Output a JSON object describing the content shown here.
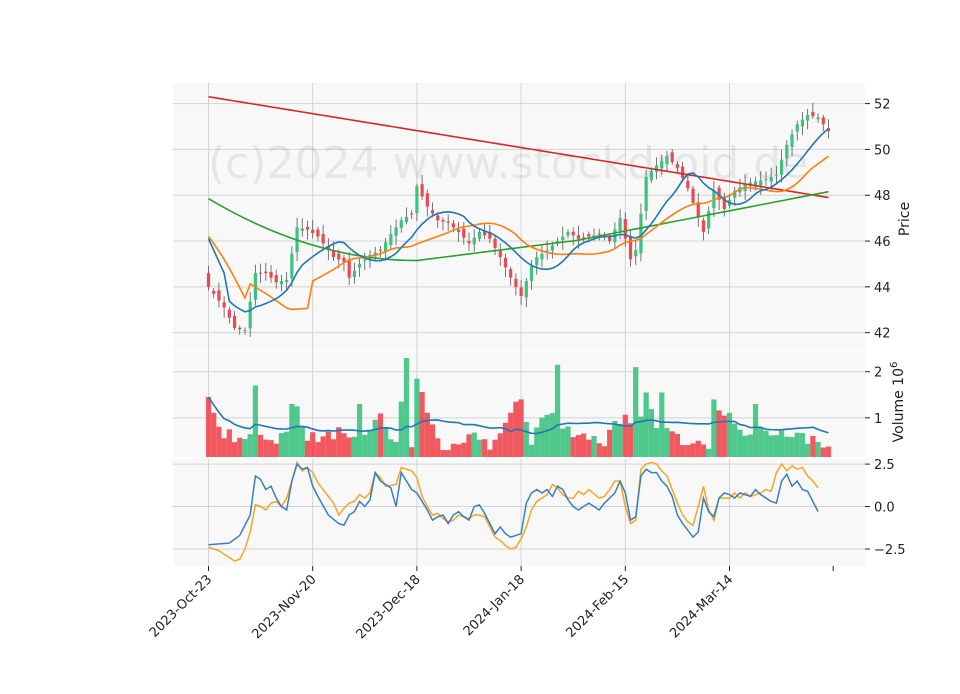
{
  "chart_data": {
    "type": "candlestick",
    "watermark": "(c)2024 www.stockdroid.de",
    "x_tick_labels": [
      "2023-Oct-23",
      "2023-Nov-20",
      "2023-Dec-18",
      "2024-Jan-18",
      "2024-Feb-15",
      "2024-Mar-14"
    ],
    "x_tick_days": [
      0,
      20,
      40,
      60,
      80,
      100
    ],
    "n_days": 120,
    "colors": {
      "up": "#3cc27f",
      "down": "#f0474f",
      "ma_fast": "#1f77b4",
      "ma_mid": "#ff7f0e",
      "ma_slow": "#2ca02c",
      "ma_long": "#d62728",
      "vol_ma": "#1f77b4",
      "macd": "#3a7ebf",
      "signal": "#f5a623",
      "panel_bg": "#f8f8f8",
      "grid": "#d3d3d3"
    },
    "price_panel": {
      "ylabel": "Price",
      "ylim": [
        41.2,
        52.9
      ],
      "yticks": [
        42,
        44,
        46,
        48,
        50,
        52
      ],
      "close_keypoints": [
        [
          0,
          44.0
        ],
        [
          3,
          43.1
        ],
        [
          5,
          42.2
        ],
        [
          7,
          42.1
        ],
        [
          9,
          44.6
        ],
        [
          11,
          44.6
        ],
        [
          13,
          44.2
        ],
        [
          15,
          44.3
        ],
        [
          17,
          46.6
        ],
        [
          19,
          46.5
        ],
        [
          21,
          46.2
        ],
        [
          24,
          45.3
        ],
        [
          26,
          45.1
        ],
        [
          27,
          44.4
        ],
        [
          29,
          45.0
        ],
        [
          31,
          45.4
        ],
        [
          33,
          45.6
        ],
        [
          35,
          46.3
        ],
        [
          37,
          46.9
        ],
        [
          39,
          47.2
        ],
        [
          40,
          48.4
        ],
        [
          42,
          47.5
        ],
        [
          44,
          46.9
        ],
        [
          46,
          46.8
        ],
        [
          48,
          46.4
        ],
        [
          50,
          45.9
        ],
        [
          52,
          46.4
        ],
        [
          54,
          46.1
        ],
        [
          56,
          45.3
        ],
        [
          58,
          44.4
        ],
        [
          60,
          43.6
        ],
        [
          62,
          44.9
        ],
        [
          63,
          45.3
        ],
        [
          65,
          45.6
        ],
        [
          67,
          46.0
        ],
        [
          69,
          46.4
        ],
        [
          71,
          46.1
        ],
        [
          73,
          46.2
        ],
        [
          75,
          46.3
        ],
        [
          77,
          46.0
        ],
        [
          79,
          47.0
        ],
        [
          81,
          45.2
        ],
        [
          82,
          45.6
        ],
        [
          84,
          48.8
        ],
        [
          86,
          49.3
        ],
        [
          88,
          49.7
        ],
        [
          90,
          49.2
        ],
        [
          92,
          48.3
        ],
        [
          95,
          46.4
        ],
        [
          97,
          48.2
        ],
        [
          99,
          47.4
        ],
        [
          101,
          48.2
        ],
        [
          103,
          48.5
        ],
        [
          105,
          48.6
        ],
        [
          107,
          48.7
        ],
        [
          109,
          48.9
        ],
        [
          111,
          50.2
        ],
        [
          113,
          51.1
        ],
        [
          115,
          51.5
        ],
        [
          117,
          51.4
        ],
        [
          119,
          50.8
        ]
      ],
      "volume_keypoints": [
        [
          0,
          1.45
        ],
        [
          2,
          0.7
        ],
        [
          4,
          0.65
        ],
        [
          6,
          0.45
        ],
        [
          8,
          0.6
        ],
        [
          10,
          0.7
        ],
        [
          12,
          0.5
        ],
        [
          15,
          0.65
        ],
        [
          16,
          0.4
        ],
        [
          17,
          1.25
        ],
        [
          19,
          0.6
        ],
        [
          22,
          0.55
        ],
        [
          25,
          0.7
        ],
        [
          27,
          0.45
        ],
        [
          29,
          0.5
        ],
        [
          31,
          0.8
        ],
        [
          33,
          1.0
        ],
        [
          35,
          0.6
        ],
        [
          36,
          0.5
        ],
        [
          37,
          1.3
        ],
        [
          39,
          0.4
        ],
        [
          41,
          1.5
        ],
        [
          43,
          0.8
        ],
        [
          45,
          0.35
        ],
        [
          48,
          0.3
        ],
        [
          50,
          0.55
        ],
        [
          52,
          0.6
        ],
        [
          54,
          0.4
        ],
        [
          56,
          0.65
        ],
        [
          58,
          1.0
        ],
        [
          60,
          1.35
        ],
        [
          62,
          0.5
        ],
        [
          64,
          1.0
        ],
        [
          66,
          1.1
        ],
        [
          68,
          0.8
        ],
        [
          70,
          0.7
        ],
        [
          72,
          0.65
        ],
        [
          74,
          0.55
        ],
        [
          76,
          0.45
        ],
        [
          78,
          0.95
        ],
        [
          80,
          1.0
        ],
        [
          82,
          0.6
        ],
        [
          84,
          1.25
        ],
        [
          86,
          0.9
        ],
        [
          88,
          0.75
        ],
        [
          90,
          0.55
        ],
        [
          92,
          0.5
        ],
        [
          94,
          0.6
        ],
        [
          96,
          0.45
        ],
        [
          98,
          1.05
        ],
        [
          100,
          1.2
        ],
        [
          102,
          0.7
        ],
        [
          104,
          0.65
        ],
        [
          106,
          0.8
        ],
        [
          108,
          0.55
        ],
        [
          110,
          0.75
        ],
        [
          112,
          0.65
        ],
        [
          114,
          0.55
        ],
        [
          116,
          0.5
        ],
        [
          118,
          0.45
        ],
        [
          119,
          0.45
        ]
      ],
      "volume_spikes": [
        [
          0,
          1.45
        ],
        [
          9,
          1.7
        ],
        [
          16,
          1.3
        ],
        [
          29,
          1.3
        ],
        [
          37,
          1.35
        ],
        [
          38,
          2.3
        ],
        [
          40,
          1.85
        ],
        [
          59,
          1.35
        ],
        [
          60,
          1.4
        ],
        [
          67,
          2.15
        ],
        [
          82,
          2.1
        ],
        [
          84,
          1.55
        ],
        [
          87,
          1.55
        ],
        [
          97,
          1.4
        ],
        [
          105,
          1.3
        ]
      ]
    },
    "volume_panel": {
      "ylabel": "Volume  10^6",
      "ylim": [
        0.15,
        2.45
      ],
      "yticks": [
        1,
        2
      ]
    },
    "macd_panel": {
      "ylim": [
        -3.5,
        2.8
      ],
      "yticks": [
        -2.5,
        0.0,
        2.5
      ],
      "macd_keypoints": [
        [
          0,
          -2.25
        ],
        [
          2,
          -2.2
        ],
        [
          4,
          -2.15
        ],
        [
          6,
          -1.7
        ],
        [
          8,
          -0.5
        ],
        [
          9,
          1.8
        ],
        [
          10,
          1.6
        ],
        [
          11,
          1.0
        ],
        [
          12,
          1.2
        ],
        [
          13,
          0.5
        ],
        [
          14,
          0.0
        ],
        [
          15,
          -0.2
        ],
        [
          16,
          1.5
        ],
        [
          17,
          2.5
        ],
        [
          18,
          2.2
        ],
        [
          19,
          2.3
        ],
        [
          20,
          1.2
        ],
        [
          21,
          0.6
        ],
        [
          23,
          -0.5
        ],
        [
          25,
          -1.0
        ],
        [
          26,
          -1.1
        ],
        [
          27,
          -0.5
        ],
        [
          28,
          -0.3
        ],
        [
          29,
          0.3
        ],
        [
          30,
          0.0
        ],
        [
          31,
          0.4
        ],
        [
          32,
          2.0
        ],
        [
          33,
          1.5
        ],
        [
          35,
          1.1
        ],
        [
          36,
          0.0
        ],
        [
          37,
          2.0
        ],
        [
          39,
          1.0
        ],
        [
          40,
          0.8
        ],
        [
          42,
          -0.2
        ],
        [
          43,
          -0.8
        ],
        [
          44,
          -0.6
        ],
        [
          45,
          -0.5
        ],
        [
          46,
          -1.0
        ],
        [
          47,
          -0.5
        ],
        [
          48,
          -0.3
        ],
        [
          49,
          -0.6
        ],
        [
          50,
          -0.8
        ],
        [
          51,
          0.0
        ],
        [
          52,
          0.1
        ],
        [
          53,
          -0.4
        ],
        [
          55,
          -1.6
        ],
        [
          56,
          -1.2
        ],
        [
          57,
          -1.6
        ],
        [
          58,
          -1.8
        ],
        [
          60,
          -1.6
        ],
        [
          61,
          0.2
        ],
        [
          62,
          0.8
        ],
        [
          63,
          1.0
        ],
        [
          64,
          0.8
        ],
        [
          65,
          1.0
        ],
        [
          66,
          0.6
        ],
        [
          67,
          1.2
        ],
        [
          68,
          1.0
        ],
        [
          69,
          0.4
        ],
        [
          70,
          0.0
        ],
        [
          71,
          -0.2
        ],
        [
          73,
          0.2
        ],
        [
          75,
          -0.2
        ],
        [
          76,
          0.2
        ],
        [
          78,
          0.8
        ],
        [
          79,
          1.5
        ],
        [
          80,
          0.8
        ],
        [
          81,
          -0.8
        ],
        [
          82,
          -0.6
        ],
        [
          83,
          1.8
        ],
        [
          84,
          2.2
        ],
        [
          85,
          2.0
        ],
        [
          86,
          2.0
        ],
        [
          87,
          1.5
        ],
        [
          88,
          1.2
        ],
        [
          89,
          0.6
        ],
        [
          90,
          -0.5
        ],
        [
          91,
          -1.0
        ],
        [
          92,
          -1.4
        ],
        [
          93,
          -1.8
        ],
        [
          94,
          -1.5
        ],
        [
          95,
          0.5
        ],
        [
          96,
          -0.3
        ],
        [
          97,
          -0.6
        ],
        [
          98,
          0.5
        ],
        [
          99,
          0.8
        ],
        [
          100,
          0.7
        ],
        [
          101,
          0.5
        ],
        [
          102,
          0.8
        ],
        [
          103,
          0.7
        ],
        [
          104,
          0.6
        ],
        [
          105,
          1.0
        ],
        [
          106,
          0.7
        ],
        [
          107,
          0.5
        ],
        [
          108,
          0.3
        ],
        [
          109,
          0.2
        ],
        [
          110,
          1.5
        ],
        [
          111,
          1.9
        ],
        [
          112,
          1.2
        ],
        [
          113,
          1.5
        ],
        [
          114,
          1.0
        ],
        [
          115,
          0.9
        ],
        [
          116,
          0.3
        ],
        [
          117,
          -0.3
        ]
      ],
      "signal_keypoints": [
        [
          0,
          -2.4
        ],
        [
          2,
          -2.6
        ],
        [
          4,
          -3.0
        ],
        [
          5,
          -3.2
        ],
        [
          6,
          -3.1
        ],
        [
          7,
          -2.5
        ],
        [
          8,
          -1.5
        ],
        [
          9,
          0.1
        ],
        [
          10,
          0.0
        ],
        [
          11,
          -0.2
        ],
        [
          12,
          0.2
        ],
        [
          13,
          0.3
        ],
        [
          14,
          0.0
        ],
        [
          15,
          0.5
        ],
        [
          16,
          1.5
        ],
        [
          17,
          2.6
        ],
        [
          18,
          2.1
        ],
        [
          19,
          2.3
        ],
        [
          20,
          2.0
        ],
        [
          21,
          1.4
        ],
        [
          23,
          0.6
        ],
        [
          24,
          0.2
        ],
        [
          25,
          -0.5
        ],
        [
          26,
          -0.1
        ],
        [
          27,
          0.2
        ],
        [
          28,
          0.3
        ],
        [
          29,
          0.7
        ],
        [
          30,
          0.5
        ],
        [
          31,
          0.8
        ],
        [
          32,
          2.0
        ],
        [
          33,
          1.7
        ],
        [
          34,
          1.2
        ],
        [
          36,
          1.3
        ],
        [
          37,
          2.3
        ],
        [
          39,
          2.1
        ],
        [
          40,
          1.7
        ],
        [
          41,
          0.6
        ],
        [
          42,
          0.0
        ],
        [
          43,
          -0.5
        ],
        [
          44,
          -0.4
        ],
        [
          45,
          -0.7
        ],
        [
          46,
          -0.9
        ],
        [
          47,
          -0.8
        ],
        [
          48,
          -0.5
        ],
        [
          50,
          -0.7
        ],
        [
          51,
          -0.5
        ],
        [
          52,
          -0.5
        ],
        [
          53,
          -0.6
        ],
        [
          55,
          -1.8
        ],
        [
          56,
          -2.0
        ],
        [
          57,
          -2.3
        ],
        [
          58,
          -2.5
        ],
        [
          59,
          -2.4
        ],
        [
          60,
          -1.9
        ],
        [
          61,
          -1.2
        ],
        [
          62,
          -0.2
        ],
        [
          63,
          0.3
        ],
        [
          64,
          0.5
        ],
        [
          65,
          0.7
        ],
        [
          66,
          1.3
        ],
        [
          67,
          1.1
        ],
        [
          68,
          0.7
        ],
        [
          69,
          0.5
        ],
        [
          70,
          0.5
        ],
        [
          71,
          0.9
        ],
        [
          72,
          0.7
        ],
        [
          73,
          1.0
        ],
        [
          75,
          0.5
        ],
        [
          76,
          0.6
        ],
        [
          77,
          1.0
        ],
        [
          78,
          1.5
        ],
        [
          79,
          1.5
        ],
        [
          80,
          0.0
        ],
        [
          81,
          -1.0
        ],
        [
          82,
          -0.8
        ],
        [
          83,
          2.2
        ],
        [
          84,
          2.5
        ],
        [
          85,
          2.6
        ],
        [
          86,
          2.5
        ],
        [
          87,
          2.1
        ],
        [
          88,
          1.8
        ],
        [
          89,
          1.0
        ],
        [
          90,
          0.2
        ],
        [
          91,
          -0.5
        ],
        [
          92,
          -0.9
        ],
        [
          93,
          -1.1
        ],
        [
          94,
          0.0
        ],
        [
          95,
          1.2
        ],
        [
          96,
          -0.2
        ],
        [
          97,
          -0.8
        ],
        [
          98,
          0.5
        ],
        [
          99,
          0.5
        ],
        [
          100,
          0.5
        ],
        [
          101,
          0.8
        ],
        [
          102,
          0.5
        ],
        [
          103,
          0.8
        ],
        [
          104,
          0.6
        ],
        [
          105,
          0.7
        ],
        [
          106,
          0.8
        ],
        [
          107,
          1.0
        ],
        [
          108,
          0.9
        ],
        [
          109,
          2.0
        ],
        [
          110,
          2.5
        ],
        [
          111,
          2.1
        ],
        [
          112,
          2.4
        ],
        [
          113,
          2.2
        ],
        [
          114,
          2.3
        ],
        [
          115,
          1.8
        ],
        [
          116,
          1.5
        ],
        [
          117,
          1.1
        ]
      ]
    }
  }
}
